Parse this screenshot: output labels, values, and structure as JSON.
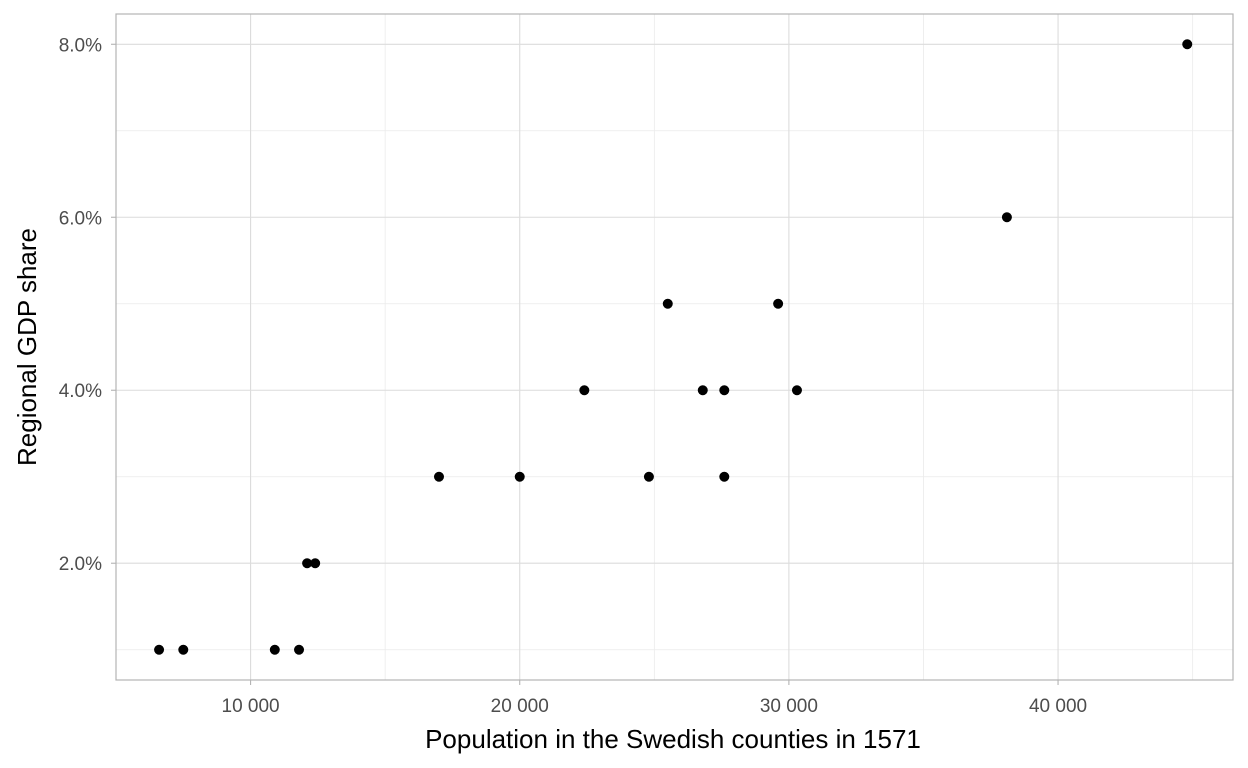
{
  "chart_data": {
    "type": "scatter",
    "xlabel": "Population in the Swedish counties in 1571",
    "ylabel": "Regional GDP share",
    "xlim": [
      5000,
      46500
    ],
    "ylim": [
      0.0065,
      0.0835
    ],
    "x_ticks": [
      {
        "value": 10000,
        "label": "10 000"
      },
      {
        "value": 20000,
        "label": "20 000"
      },
      {
        "value": 30000,
        "label": "30 000"
      },
      {
        "value": 40000,
        "label": "40 000"
      }
    ],
    "y_ticks": [
      {
        "value": 0.02,
        "label": "2.0%"
      },
      {
        "value": 0.04,
        "label": "4.0%"
      },
      {
        "value": 0.06,
        "label": "6.0%"
      },
      {
        "value": 0.08,
        "label": "8.0%"
      }
    ],
    "grid": true,
    "legend": "none",
    "point_color": "#000000",
    "points": [
      {
        "x": 6600,
        "y": 0.01
      },
      {
        "x": 7500,
        "y": 0.01
      },
      {
        "x": 10900,
        "y": 0.01
      },
      {
        "x": 11800,
        "y": 0.01
      },
      {
        "x": 12100,
        "y": 0.02
      },
      {
        "x": 12400,
        "y": 0.02
      },
      {
        "x": 17000,
        "y": 0.03
      },
      {
        "x": 20000,
        "y": 0.03
      },
      {
        "x": 22400,
        "y": 0.04
      },
      {
        "x": 24800,
        "y": 0.03
      },
      {
        "x": 25500,
        "y": 0.05
      },
      {
        "x": 26800,
        "y": 0.04
      },
      {
        "x": 27600,
        "y": 0.04
      },
      {
        "x": 27600,
        "y": 0.03
      },
      {
        "x": 29600,
        "y": 0.05
      },
      {
        "x": 30300,
        "y": 0.04
      },
      {
        "x": 38100,
        "y": 0.06
      },
      {
        "x": 44800,
        "y": 0.08
      }
    ]
  }
}
